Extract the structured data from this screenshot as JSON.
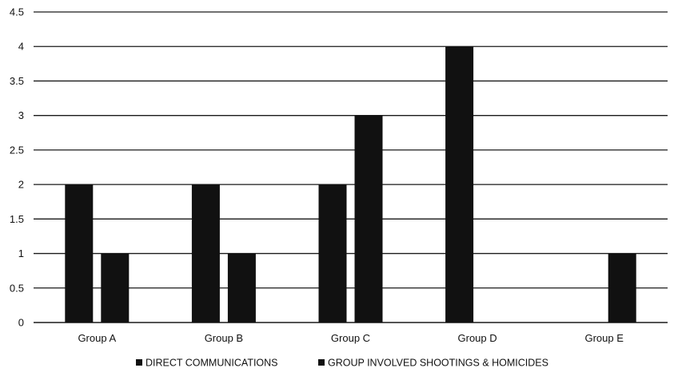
{
  "chart_data": {
    "type": "bar",
    "categories": [
      "Group A",
      "Group B",
      "Group C",
      "Group D",
      "Group E"
    ],
    "series": [
      {
        "name": "DIRECT COMMUNICATIONS",
        "values": [
          2,
          2,
          2,
          4,
          0
        ]
      },
      {
        "name": "GROUP INVOLVED SHOOTINGS & HOMICIDES",
        "values": [
          1,
          1,
          3,
          0,
          1
        ]
      }
    ],
    "title": "",
    "xlabel": "",
    "ylabel": "",
    "ylim": [
      0,
      4.5
    ],
    "yticks": [
      "0",
      "0.5",
      "1",
      "1.5",
      "2",
      "2.5",
      "3",
      "3.5",
      "4",
      "4.5"
    ],
    "grid": true,
    "legend_position": "bottom",
    "colors": {
      "series": [
        "#111111",
        "#111111"
      ],
      "grid": "#1a1a1a"
    }
  }
}
